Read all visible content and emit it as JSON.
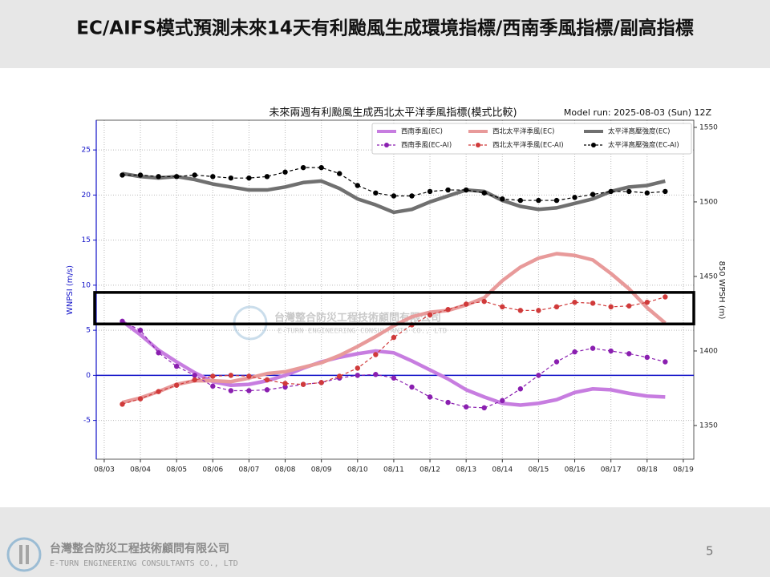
{
  "slide_title": "EC/AIFS模式預測未來14天有利颱風生成環境指標/西南季風指標/副高指標",
  "chart_data": {
    "type": "line",
    "title": "未來兩週有利颱風生成西北太平洋季風指標(模式比較)",
    "subtitle": "Model run: 2025-08-03 (Sun) 12Z",
    "y_label": "WNPSI (m/s)",
    "y2_label": "850 WPSH (m)",
    "x": [
      3.5,
      4,
      4.5,
      5,
      5.5,
      6,
      6.5,
      7,
      7.5,
      8,
      8.5,
      9,
      9.5,
      10,
      10.5,
      11,
      11.5,
      12,
      12.5,
      13,
      13.5,
      14,
      14.5,
      15,
      15.5,
      16,
      16.5,
      17,
      17.5,
      18,
      18.5
    ],
    "xlim": [
      2.78,
      19.29
    ],
    "xticks": [
      {
        "value": 3,
        "label": "08/03"
      },
      {
        "value": 4,
        "label": "08/04"
      },
      {
        "value": 5,
        "label": "08/05"
      },
      {
        "value": 6,
        "label": "08/06"
      },
      {
        "value": 7,
        "label": "08/07"
      },
      {
        "value": 8,
        "label": "08/08"
      },
      {
        "value": 9,
        "label": "08/09"
      },
      {
        "value": 10,
        "label": "08/10"
      },
      {
        "value": 11,
        "label": "08/11"
      },
      {
        "value": 12,
        "label": "08/12"
      },
      {
        "value": 13,
        "label": "08/13"
      },
      {
        "value": 14,
        "label": "08/14"
      },
      {
        "value": 15,
        "label": "08/15"
      },
      {
        "value": 16,
        "label": "08/16"
      },
      {
        "value": 17,
        "label": "08/17"
      },
      {
        "value": 18,
        "label": "08/18"
      },
      {
        "value": 19,
        "label": "08/19"
      }
    ],
    "ylim": [
      -9.3,
      28.3
    ],
    "yticks": [
      -5,
      0,
      5,
      10,
      15,
      20,
      25
    ],
    "y2lim": [
      1327.4,
      1554.8
    ],
    "y2ticks": [
      1350,
      1400,
      1450,
      1500,
      1550
    ],
    "grid": true,
    "legend": "upper right",
    "reference_line": {
      "value": 0,
      "color": "#1010c8"
    },
    "highlight_box": {
      "ylim": [
        5.7,
        9.2
      ],
      "color": "#000000"
    },
    "series": [
      {
        "name": "西南季風(EC)",
        "style": "line",
        "color": "#c77de0",
        "values": [
          6.0,
          4.5,
          2.8,
          1.5,
          0.3,
          -0.7,
          -1.1,
          -1.0,
          -0.6,
          0.0,
          0.8,
          1.5,
          2.0,
          2.4,
          2.7,
          2.5,
          1.6,
          0.6,
          -0.4,
          -1.6,
          -2.4,
          -3.1,
          -3.3,
          -3.1,
          -2.7,
          -1.9,
          -1.5,
          -1.6,
          -2.0,
          -2.3,
          -2.4
        ]
      },
      {
        "name": "西北太平洋季風(EC)",
        "style": "line",
        "color": "#e89a9a",
        "values": [
          -3.0,
          -2.5,
          -1.8,
          -1.0,
          -0.6,
          -0.6,
          -0.7,
          -0.3,
          0.2,
          0.4,
          0.9,
          1.4,
          2.2,
          3.2,
          4.3,
          5.5,
          6.5,
          7.0,
          7.2,
          7.8,
          8.6,
          10.5,
          12.0,
          13.0,
          13.5,
          13.3,
          12.8,
          11.3,
          9.6,
          7.5,
          5.8
        ]
      },
      {
        "name": "太平洋高壓強度(EC)",
        "style": "line",
        "color": "#707070",
        "axis": "y2",
        "values": [
          1519,
          1517,
          1516,
          1517,
          1515,
          1512,
          1510,
          1508,
          1508,
          1510,
          1513,
          1514,
          1509,
          1502,
          1498,
          1493,
          1495,
          1500,
          1504,
          1508,
          1507,
          1501,
          1497,
          1495,
          1496,
          1499,
          1502,
          1507,
          1510,
          1511,
          1514
        ]
      },
      {
        "name": "西南季風(EC-AI)",
        "style": "dots",
        "color": "#8a1fb0",
        "values": [
          6.0,
          5.0,
          2.5,
          1.0,
          0.0,
          -1.2,
          -1.7,
          -1.7,
          -1.6,
          -1.3,
          -1.0,
          -0.8,
          -0.3,
          0.0,
          0.1,
          -0.3,
          -1.3,
          -2.4,
          -3.0,
          -3.5,
          -3.6,
          -2.8,
          -1.5,
          0.0,
          1.5,
          2.6,
          3.0,
          2.7,
          2.4,
          2.0,
          1.5
        ]
      },
      {
        "name": "西北太平洋季風(EC-AI)",
        "style": "dots",
        "color": "#d03a3a",
        "values": [
          -3.2,
          -2.6,
          -1.8,
          -1.1,
          -0.5,
          -0.1,
          0.0,
          -0.1,
          -0.5,
          -0.9,
          -1.0,
          -0.8,
          -0.1,
          0.8,
          2.3,
          4.2,
          5.6,
          6.7,
          7.3,
          7.9,
          8.2,
          7.6,
          7.2,
          7.2,
          7.6,
          8.1,
          8.0,
          7.6,
          7.7,
          8.1,
          8.7
        ]
      },
      {
        "name": "太平洋高壓強度(EC-AI)",
        "style": "dots",
        "color": "#000000",
        "axis": "y2",
        "values": [
          1518,
          1518,
          1517,
          1517,
          1518,
          1517,
          1516,
          1516,
          1517,
          1520,
          1523,
          1523,
          1519,
          1511,
          1506,
          1504,
          1504,
          1507,
          1508,
          1508,
          1506,
          1502,
          1501,
          1501,
          1501,
          1503,
          1505,
          1507,
          1507,
          1506,
          1507
        ]
      }
    ]
  },
  "watermark": {
    "text": "台灣整合防災工程技術顧問有限公司",
    "text_en": "E-TURN ENGINEERING CONSULTANTS CO., LTD"
  },
  "footer": {
    "company": "台灣整合防災工程技術顧問有限公司",
    "company_en": "E-TURN ENGINEERING CONSULTANTS CO., LTD",
    "page_number": "5"
  }
}
